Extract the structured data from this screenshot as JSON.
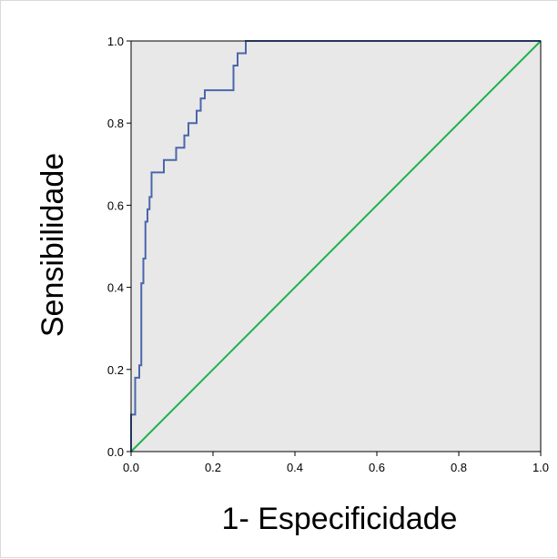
{
  "chart_data": {
    "type": "line",
    "title": "",
    "xlabel": "1- Especificidade",
    "ylabel": "Sensibilidade",
    "xlim": [
      0,
      1
    ],
    "ylim": [
      0,
      1
    ],
    "x_ticks": [
      "0.0",
      "0.2",
      "0.4",
      "0.6",
      "0.8",
      "1.0"
    ],
    "y_ticks": [
      "0.0",
      "0.2",
      "0.4",
      "0.6",
      "0.8",
      "1.0"
    ],
    "grid": false,
    "legend": "none",
    "colors": {
      "roc_curve": "#4a66ac",
      "reference_line": "#21b14c",
      "plot_background": "#e8e8e8"
    },
    "series": [
      {
        "x": [
          0,
          0,
          0.01,
          0.01,
          0.02,
          0.02,
          0.025,
          0.025,
          0.03,
          0.03,
          0.035,
          0.035,
          0.04,
          0.04,
          0.045,
          0.045,
          0.05,
          0.05,
          0.08,
          0.08,
          0.1,
          0.1,
          0.11,
          0.11,
          0.13,
          0.13,
          0.14,
          0.14,
          0.16,
          0.16,
          0.17,
          0.17,
          0.18,
          0.18,
          0.25,
          0.25,
          0.26,
          0.26,
          0.28,
          0.28,
          0.29,
          0.29,
          1
        ],
        "y": [
          0,
          0.09,
          0.09,
          0.18,
          0.18,
          0.21,
          0.21,
          0.41,
          0.41,
          0.47,
          0.47,
          0.56,
          0.56,
          0.59,
          0.59,
          0.62,
          0.62,
          0.68,
          0.68,
          0.71,
          0.71,
          0.71,
          0.71,
          0.74,
          0.74,
          0.77,
          0.77,
          0.8,
          0.8,
          0.83,
          0.83,
          0.86,
          0.86,
          0.88,
          0.88,
          0.94,
          0.94,
          0.97,
          0.97,
          1.0,
          1.0,
          1.0,
          1.0
        ]
      },
      {
        "x": [
          0,
          1
        ],
        "y": [
          0,
          1
        ]
      }
    ]
  }
}
